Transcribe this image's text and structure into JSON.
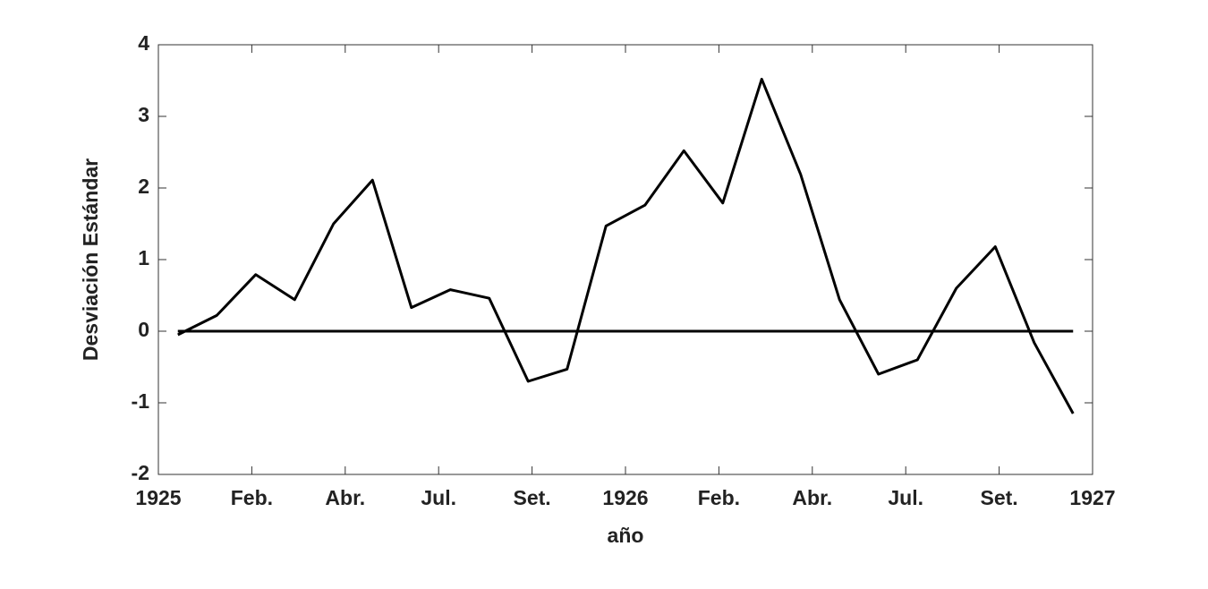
{
  "chart_data": {
    "type": "line",
    "x_label": "año",
    "y_label": "Desviación Estándar",
    "x": [
      0.5,
      1.5,
      2.5,
      3.5,
      4.5,
      5.5,
      6.5,
      7.5,
      8.5,
      9.5,
      10.5,
      11.5,
      12.5,
      13.5,
      14.5,
      15.5,
      16.5,
      17.5,
      18.5,
      19.5,
      20.5,
      21.5,
      22.5,
      23.5
    ],
    "series": [
      {
        "color": "#000000",
        "values": [
          -0.05,
          0.22,
          0.79,
          0.44,
          1.5,
          2.11,
          0.33,
          0.58,
          0.46,
          -0.7,
          -0.53,
          1.47,
          1.76,
          2.52,
          1.79,
          3.52,
          2.19,
          0.44,
          -0.6,
          -0.4,
          0.6,
          1.18,
          -0.16,
          -1.15
        ]
      }
    ],
    "xlim": [
      0,
      24
    ],
    "xticks": [
      {
        "value": 0,
        "label": "1925"
      },
      {
        "value": 2.4,
        "label": "Feb."
      },
      {
        "value": 4.8,
        "label": "Abr."
      },
      {
        "value": 7.2,
        "label": "Jul."
      },
      {
        "value": 9.6,
        "label": "Set."
      },
      {
        "value": 12,
        "label": "1926"
      },
      {
        "value": 14.4,
        "label": "Feb."
      },
      {
        "value": 16.8,
        "label": "Abr."
      },
      {
        "value": 19.2,
        "label": "Jul."
      },
      {
        "value": 21.6,
        "label": "Set."
      },
      {
        "value": 24,
        "label": "1927"
      }
    ],
    "ylim": [
      -2,
      4
    ],
    "yticks": [
      -2,
      -1,
      0,
      1,
      2,
      3,
      4
    ],
    "zero_line": true,
    "grid": false
  }
}
